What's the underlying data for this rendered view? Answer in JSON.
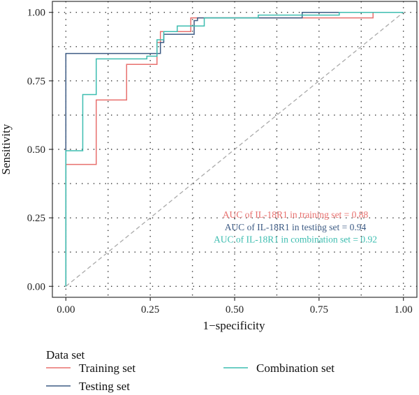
{
  "chart_data": {
    "type": "line",
    "title": "",
    "xlabel": "1−specificity",
    "ylabel": "Sensitivity",
    "xlim": [
      -0.04,
      1.04
    ],
    "ylim": [
      -0.04,
      1.04
    ],
    "xticks": [
      0.0,
      0.25,
      0.5,
      0.75,
      1.0
    ],
    "xtick_labels": [
      "0.00",
      "0.25",
      "0.50",
      "0.75",
      "1.00"
    ],
    "yticks": [
      0.0,
      0.25,
      0.5,
      0.75,
      1.0
    ],
    "ytick_labels": [
      "0.00",
      "0.25",
      "0.50",
      "0.75",
      "1.00"
    ],
    "grid": "dotted",
    "legend_title": "Data set",
    "legend_position": "bottom",
    "reference_line": {
      "x": [
        0,
        1
      ],
      "y": [
        0,
        1
      ],
      "color": "#aaaaaa",
      "style": "dashed"
    },
    "series": [
      {
        "name": "Training set",
        "color": "#e8706e",
        "x": [
          0,
          0,
          0.09,
          0.09,
          0.18,
          0.18,
          0.27,
          0.27,
          0.28,
          0.28,
          0.37,
          0.37,
          0.57,
          0.57,
          0.91,
          0.91,
          1.0
        ],
        "y": [
          0,
          0.445,
          0.445,
          0.68,
          0.68,
          0.81,
          0.81,
          0.89,
          0.89,
          0.93,
          0.93,
          0.98,
          0.98,
          0.98,
          0.98,
          1.0,
          1.0
        ]
      },
      {
        "name": "Testing set",
        "color": "#3d5b84",
        "x": [
          0,
          0,
          0.28,
          0.28,
          0.29,
          0.29,
          0.38,
          0.38,
          0.39,
          0.39,
          0.7,
          0.7,
          1.0
        ],
        "y": [
          0,
          0.85,
          0.85,
          0.89,
          0.89,
          0.92,
          0.92,
          0.97,
          0.97,
          0.98,
          0.98,
          1.0,
          1.0
        ]
      },
      {
        "name": "Combination set",
        "color": "#3dbdb0",
        "x": [
          0,
          0,
          0.05,
          0.05,
          0.09,
          0.09,
          0.24,
          0.24,
          0.27,
          0.27,
          0.29,
          0.29,
          0.33,
          0.33,
          0.41,
          0.41,
          0.57,
          0.57,
          0.81,
          0.81,
          1.0
        ],
        "y": [
          0,
          0.495,
          0.495,
          0.7,
          0.7,
          0.83,
          0.83,
          0.84,
          0.84,
          0.9,
          0.9,
          0.93,
          0.93,
          0.95,
          0.95,
          0.98,
          0.98,
          0.99,
          0.99,
          1.0,
          1.0
        ]
      }
    ],
    "annotations": [
      {
        "text": "AUC of IL-18R1 in training set = 0.88",
        "series": "Training set",
        "x": 0.68,
        "y": 0.25
      },
      {
        "text": "AUC of IL-18R1 in testing set = 0.94",
        "series": "Testing set",
        "x": 0.68,
        "y": 0.205
      },
      {
        "text": "AUC of IL-18R1 in combination set = 0.92",
        "series": "Combination set",
        "x": 0.68,
        "y": 0.16
      }
    ]
  }
}
